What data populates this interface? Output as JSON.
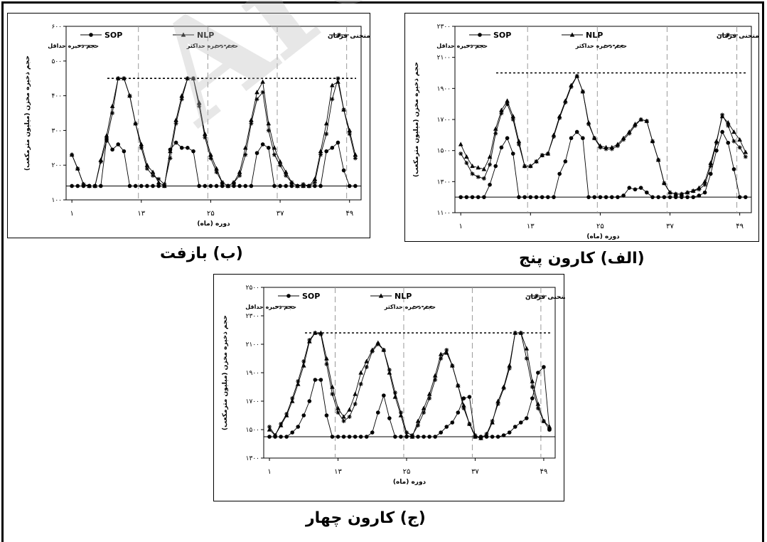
{
  "watermark": "Archive",
  "chart_data": [
    {
      "id": "bazoft",
      "type": "line",
      "caption": "(ب) بازفت",
      "xlabel": "دوره (ماه)",
      "ylabel": "حجم ذخیره مخزن (میلیون مترمکعب)",
      "x_ticks": [
        "۱",
        "۱۳",
        "۲۵",
        "۳۷",
        "۴۹"
      ],
      "y_ticks": [
        "۱۰۰",
        "۲۰۰",
        "۳۰۰",
        "۴۰۰",
        "۵۰۰",
        "۶۰۰"
      ],
      "ylim": [
        100,
        600
      ],
      "x": [
        1,
        2,
        3,
        4,
        5,
        6,
        7,
        8,
        9,
        10,
        11,
        12,
        13,
        14,
        15,
        16,
        17,
        18,
        19,
        20,
        21,
        22,
        23,
        24,
        25,
        26,
        27,
        28,
        29,
        30,
        31,
        32,
        33,
        34,
        35,
        36,
        37,
        38,
        39,
        40,
        41,
        42,
        43,
        44,
        45,
        46,
        47,
        48,
        49,
        50
      ],
      "min_storage": 140,
      "max_storage": 450,
      "series": [
        {
          "name": "SOP",
          "marker": "circle",
          "values": [
            140,
            140,
            140,
            140,
            140,
            140,
            275,
            245,
            260,
            240,
            140,
            140,
            140,
            140,
            140,
            140,
            140,
            245,
            265,
            250,
            250,
            240,
            140,
            140,
            140,
            140,
            140,
            140,
            140,
            140,
            140,
            140,
            235,
            260,
            250,
            140,
            140,
            140,
            140,
            140,
            140,
            140,
            140,
            140,
            240,
            250,
            265,
            185,
            140,
            140
          ]
        },
        {
          "name": "NLP",
          "marker": "triangle",
          "values": [
            230,
            190,
            145,
            140,
            140,
            215,
            285,
            370,
            450,
            450,
            400,
            320,
            260,
            200,
            180,
            150,
            140,
            240,
            330,
            400,
            450,
            450,
            380,
            290,
            230,
            190,
            150,
            140,
            150,
            180,
            250,
            330,
            410,
            440,
            320,
            250,
            210,
            180,
            150,
            140,
            140,
            140,
            160,
            240,
            320,
            430,
            440,
            360,
            300,
            230
          ]
        },
        {
          "name": "منحنی فرمان",
          "marker": "star",
          "values": [
            230,
            190,
            145,
            140,
            140,
            210,
            270,
            350,
            450,
            450,
            400,
            320,
            250,
            190,
            170,
            160,
            145,
            220,
            320,
            390,
            450,
            450,
            370,
            280,
            220,
            180,
            150,
            140,
            150,
            170,
            230,
            320,
            390,
            410,
            300,
            230,
            200,
            170,
            150,
            140,
            145,
            140,
            150,
            230,
            290,
            390,
            450,
            360,
            290,
            220
          ]
        }
      ],
      "legend": {
        "sop": "SOP",
        "nlp": "NLP",
        "rule": "منحنی فرمان",
        "min": "حجم ذخیره حداقل",
        "max": "حجم ذخیره حداکثر"
      }
    },
    {
      "id": "karun5",
      "type": "line",
      "caption": "(الف) کارون پنج",
      "xlabel": "دوره (ماه)",
      "ylabel": "حجم ذخیره مخزن (میلیون مترمکعب)",
      "x_ticks": [
        "۱",
        "۱۳",
        "۲۵",
        "۳۷",
        "۴۹"
      ],
      "y_ticks": [
        "۱۱۰۰",
        "۱۳۰۰",
        "۱۵۰۰",
        "۱۷۰۰",
        "۱۹۰۰",
        "۲۱۰۰",
        "۲۳۰۰"
      ],
      "ylim": [
        1100,
        2300
      ],
      "x": [
        1,
        2,
        3,
        4,
        5,
        6,
        7,
        8,
        9,
        10,
        11,
        12,
        13,
        14,
        15,
        16,
        17,
        18,
        19,
        20,
        21,
        22,
        23,
        24,
        25,
        26,
        27,
        28,
        29,
        30,
        31,
        32,
        33,
        34,
        35,
        36,
        37,
        38,
        39,
        40,
        41,
        42,
        43,
        44,
        45,
        46,
        47,
        48,
        49,
        50
      ],
      "min_storage": 1200,
      "max_storage": 2000,
      "series": [
        {
          "name": "SOP",
          "marker": "circle",
          "values": [
            1200,
            1200,
            1200,
            1200,
            1200,
            1280,
            1400,
            1520,
            1580,
            1480,
            1200,
            1200,
            1200,
            1200,
            1200,
            1200,
            1200,
            1350,
            1430,
            1580,
            1620,
            1580,
            1200,
            1200,
            1200,
            1200,
            1200,
            1200,
            1210,
            1260,
            1250,
            1260,
            1230,
            1200,
            1200,
            1200,
            1200,
            1200,
            1200,
            1200,
            1200,
            1210,
            1230,
            1350,
            1500,
            1620,
            1550,
            1380,
            1200,
            1200
          ]
        },
        {
          "name": "NLP",
          "marker": "triangle",
          "values": [
            1540,
            1460,
            1400,
            1390,
            1380,
            1460,
            1640,
            1760,
            1820,
            1720,
            1560,
            1400,
            1400,
            1430,
            1470,
            1480,
            1600,
            1720,
            1820,
            1920,
            1980,
            1880,
            1680,
            1580,
            1530,
            1520,
            1520,
            1540,
            1580,
            1620,
            1670,
            1700,
            1690,
            1560,
            1440,
            1290,
            1230,
            1220,
            1220,
            1230,
            1240,
            1260,
            1300,
            1420,
            1560,
            1720,
            1680,
            1620,
            1570,
            1490
          ]
        },
        {
          "name": "منحنی فرمان",
          "marker": "star",
          "values": [
            1480,
            1420,
            1350,
            1330,
            1320,
            1410,
            1610,
            1740,
            1800,
            1700,
            1540,
            1400,
            1400,
            1430,
            1470,
            1480,
            1590,
            1710,
            1810,
            1910,
            1980,
            1880,
            1670,
            1580,
            1520,
            1510,
            1510,
            1530,
            1570,
            1610,
            1660,
            1700,
            1690,
            1560,
            1440,
            1290,
            1230,
            1220,
            1220,
            1230,
            1240,
            1250,
            1280,
            1400,
            1550,
            1730,
            1660,
            1560,
            1520,
            1460
          ]
        }
      ],
      "legend": {
        "sop": "SOP",
        "nlp": "NLP",
        "rule": "منحنی فرمان",
        "min": "حجم ذخیره حداقل",
        "max": "حجم ذخیره حداکثر"
      }
    },
    {
      "id": "karun4",
      "type": "line",
      "caption": "(ج) کارون چهار",
      "xlabel": "دوره (ماه)",
      "ylabel": "حجم ذخیره مخزن (میلیون مترمکعب)",
      "x_ticks": [
        "۱",
        "۱۳",
        "۲۵",
        "۳۷",
        "۴۹"
      ],
      "y_ticks": [
        "۱۳۰۰",
        "۱۵۰۰",
        "۱۷۰۰",
        "۱۹۰۰",
        "۲۱۰۰",
        "۲۳۰۰",
        "۲۵۰۰"
      ],
      "ylim": [
        1300,
        2500
      ],
      "x": [
        1,
        2,
        3,
        4,
        5,
        6,
        7,
        8,
        9,
        10,
        11,
        12,
        13,
        14,
        15,
        16,
        17,
        18,
        19,
        20,
        21,
        22,
        23,
        24,
        25,
        26,
        27,
        28,
        29,
        30,
        31,
        32,
        33,
        34,
        35,
        36,
        37,
        38,
        39,
        40,
        41,
        42,
        43,
        44,
        45,
        46,
        47,
        48,
        49,
        50
      ],
      "min_storage": 1450,
      "max_storage": 2180,
      "series": [
        {
          "name": "SOP",
          "marker": "circle",
          "values": [
            1450,
            1450,
            1450,
            1450,
            1480,
            1520,
            1600,
            1700,
            1850,
            1850,
            1600,
            1450,
            1450,
            1450,
            1450,
            1450,
            1450,
            1450,
            1480,
            1620,
            1740,
            1580,
            1450,
            1450,
            1450,
            1450,
            1450,
            1450,
            1450,
            1450,
            1480,
            1520,
            1550,
            1620,
            1720,
            1730,
            1450,
            1450,
            1450,
            1450,
            1450,
            1460,
            1480,
            1520,
            1550,
            1580,
            1720,
            1900,
            1940,
            1500
          ]
        },
        {
          "name": "NLP",
          "marker": "triangle",
          "values": [
            1500,
            1460,
            1530,
            1600,
            1700,
            1820,
            1950,
            2120,
            2180,
            2180,
            2000,
            1800,
            1650,
            1590,
            1640,
            1750,
            1900,
            1980,
            2060,
            2110,
            2060,
            1900,
            1730,
            1600,
            1460,
            1450,
            1560,
            1650,
            1750,
            1880,
            2030,
            2040,
            1950,
            1810,
            1670,
            1540,
            1450,
            1440,
            1460,
            1550,
            1700,
            1800,
            1950,
            2180,
            2180,
            2070,
            1840,
            1680,
            1560,
            1520
          ]
        },
        {
          "name": "منحنی فرمان",
          "marker": "star",
          "values": [
            1520,
            1460,
            1540,
            1610,
            1720,
            1840,
            1980,
            2130,
            2180,
            2170,
            1960,
            1750,
            1620,
            1560,
            1590,
            1680,
            1820,
            1940,
            2050,
            2100,
            2060,
            1920,
            1760,
            1620,
            1480,
            1460,
            1530,
            1620,
            1720,
            1850,
            2000,
            2060,
            1950,
            1810,
            1650,
            1540,
            1460,
            1440,
            1470,
            1560,
            1680,
            1790,
            1930,
            2180,
            2180,
            2000,
            1800,
            1650,
            1560,
            1500
          ]
        }
      ],
      "legend": {
        "sop": "SOP",
        "nlp": "NLP",
        "rule": "منحنی فرمان",
        "min": "حجم ذخیره حداقل",
        "max": "حجم ذخیره حداکثر"
      }
    }
  ]
}
